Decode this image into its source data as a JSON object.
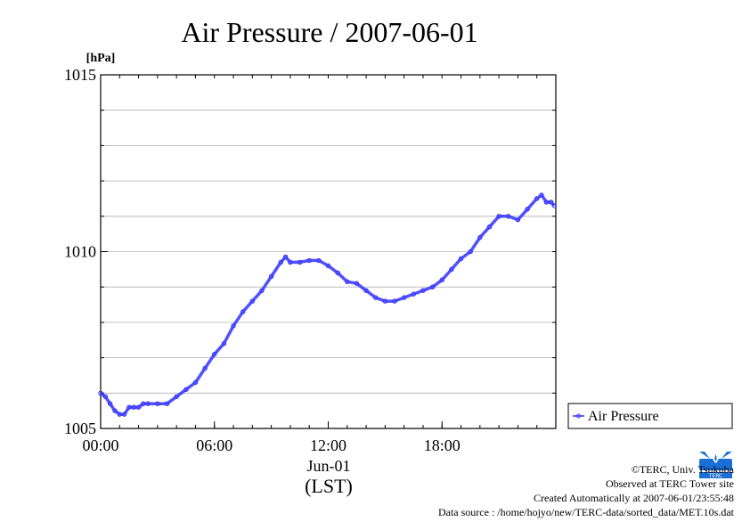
{
  "chart_data": {
    "type": "line",
    "title": "Air Pressure / 2007-06-01",
    "ylabel": "[hPa]",
    "ylim": [
      1005,
      1015
    ],
    "yticks": [
      1005,
      1010,
      1015
    ],
    "xlim": [
      0,
      24
    ],
    "xticks": [
      {
        "value": 0,
        "label": "00:00"
      },
      {
        "value": 6,
        "label": "06:00"
      },
      {
        "value": 12,
        "label": "12:00"
      },
      {
        "value": 18,
        "label": "18:00"
      }
    ],
    "x_date_label": "Jun-01",
    "xlabel": "(LST)",
    "grid": true,
    "legend_position": "right",
    "series": [
      {
        "name": "Air Pressure",
        "color": "#3333ff",
        "x": [
          0,
          0.25,
          0.5,
          0.75,
          1.0,
          1.25,
          1.5,
          1.75,
          2.0,
          2.25,
          2.5,
          3.0,
          3.5,
          4.0,
          4.5,
          5.0,
          5.5,
          6.0,
          6.5,
          7.0,
          7.5,
          8.0,
          8.5,
          9.0,
          9.5,
          9.75,
          10.0,
          10.5,
          11.0,
          11.5,
          12.0,
          12.5,
          13.0,
          13.5,
          14.0,
          14.5,
          15.0,
          15.5,
          16.0,
          16.5,
          17.0,
          17.5,
          18.0,
          18.5,
          19.0,
          19.5,
          20.0,
          20.5,
          21.0,
          21.5,
          22.0,
          22.5,
          23.0,
          23.25,
          23.5,
          23.75,
          23.92
        ],
        "values": [
          1006.0,
          1005.9,
          1005.7,
          1005.5,
          1005.4,
          1005.4,
          1005.6,
          1005.6,
          1005.6,
          1005.7,
          1005.7,
          1005.7,
          1005.7,
          1005.9,
          1006.1,
          1006.3,
          1006.7,
          1007.1,
          1007.4,
          1007.9,
          1008.3,
          1008.6,
          1008.9,
          1009.3,
          1009.7,
          1009.85,
          1009.7,
          1009.7,
          1009.75,
          1009.75,
          1009.6,
          1009.4,
          1009.15,
          1009.1,
          1008.9,
          1008.7,
          1008.6,
          1008.6,
          1008.7,
          1008.8,
          1008.9,
          1009.0,
          1009.2,
          1009.5,
          1009.8,
          1010.0,
          1010.4,
          1010.7,
          1011.0,
          1011.0,
          1010.9,
          1011.2,
          1011.5,
          1011.6,
          1011.4,
          1011.4,
          1011.3
        ]
      }
    ]
  },
  "legend": {
    "label": "Air Pressure"
  },
  "credits": {
    "line1": "©TERC, Univ. Tsukuba",
    "line2": "Observed at TERC Tower site",
    "line3": "Created Automatically at 2007-06-01/23:55:48",
    "line4": "Data source : /home/hojyo/new/TERC-data/sorted_data/MET.10s.dat"
  },
  "logo": {
    "text": "TERC",
    "icon": "terc-logo-icon",
    "color": "#1a6fd6"
  }
}
